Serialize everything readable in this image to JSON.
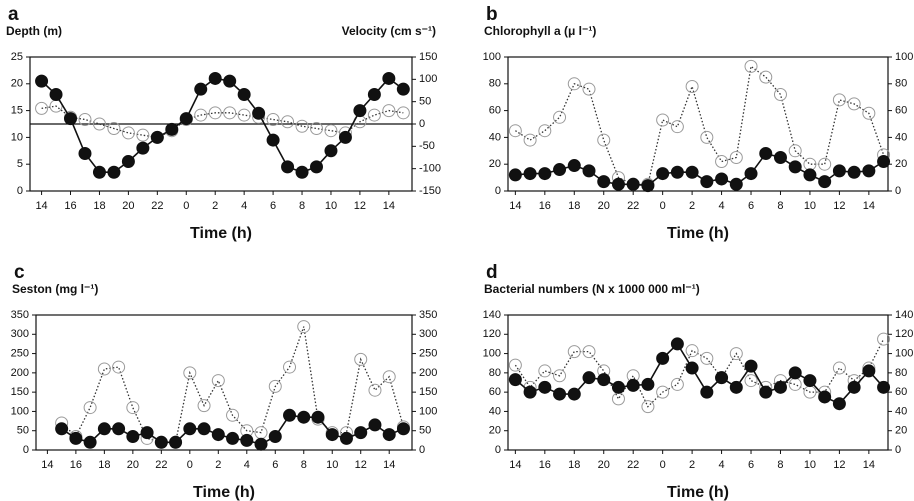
{
  "chart_data": [
    {
      "type": "line",
      "label": "a",
      "ylabel": "Depth (m)",
      "y2label": "Velocity (cm s⁻¹)",
      "xlabel": "Time (h)",
      "x": [
        14,
        15,
        16,
        17,
        18,
        19,
        20,
        21,
        22,
        23,
        24,
        25,
        26,
        27,
        28,
        29,
        30,
        31,
        32,
        33,
        34,
        35,
        36,
        37,
        38,
        39
      ],
      "xlim": [
        13.2,
        39.6
      ],
      "xticks": [
        14,
        16,
        18,
        20,
        22,
        {
          "value": 24,
          "label": "0"
        },
        {
          "value": 26,
          "label": "2"
        },
        {
          "value": 28,
          "label": "4"
        },
        {
          "value": 30,
          "label": "6"
        },
        {
          "value": 32,
          "label": "8"
        },
        {
          "value": 34,
          "label": "10"
        },
        {
          "value": 36,
          "label": "12"
        },
        {
          "value": 38,
          "label": "14"
        }
      ],
      "ylim": [
        0,
        25
      ],
      "yticks": [
        0,
        5,
        10,
        15,
        20,
        25
      ],
      "y2lim": [
        -150,
        150
      ],
      "y2ticks": [
        -150,
        -100,
        -50,
        0,
        50,
        100,
        150
      ],
      "reference_y2": 0,
      "series": [
        {
          "color": "#111111",
          "marker": "filled",
          "values": [
            20.5,
            18,
            13.5,
            7,
            3.5,
            3.5,
            5.5,
            8,
            10,
            11.5,
            13.5,
            19,
            21,
            20.5,
            18,
            14.5,
            9.5,
            4.5,
            3.5,
            4.5,
            7.5,
            10,
            15,
            18,
            21,
            19
          ]
        },
        {
          "color": "#9a9a9a",
          "marker": "open",
          "axis": "y2",
          "values": [
            35,
            40,
            15,
            10,
            0,
            -10,
            -20,
            -25,
            -30,
            -15,
            10,
            20,
            25,
            25,
            20,
            15,
            10,
            5,
            -5,
            -10,
            -15,
            -20,
            5,
            20,
            30,
            25
          ]
        }
      ]
    },
    {
      "type": "line",
      "label": "b",
      "ylabel": "Chlorophyll a (μ l⁻¹)",
      "xlabel": "Time (h)",
      "x": [
        14,
        15,
        16,
        17,
        18,
        19,
        20,
        21,
        22,
        23,
        24,
        25,
        26,
        27,
        28,
        29,
        30,
        31,
        32,
        33,
        34,
        35,
        36,
        37,
        38,
        39
      ],
      "xlim": [
        13.5,
        39.3
      ],
      "xticks": [
        14,
        16,
        18,
        20,
        22,
        {
          "value": 24,
          "label": "0"
        },
        {
          "value": 26,
          "label": "2"
        },
        {
          "value": 28,
          "label": "4"
        },
        {
          "value": 30,
          "label": "6"
        },
        {
          "value": 32,
          "label": "8"
        },
        {
          "value": 34,
          "label": "10"
        },
        {
          "value": 36,
          "label": "12"
        },
        {
          "value": 38,
          "label": "14"
        }
      ],
      "ylim": [
        0,
        100
      ],
      "yticks": [
        0,
        20,
        40,
        60,
        80,
        100
      ],
      "y2lim": [
        0,
        100
      ],
      "y2ticks": [
        0,
        20,
        40,
        60,
        80,
        100
      ],
      "series": [
        {
          "color": "#111111",
          "marker": "filled",
          "values": [
            12,
            13,
            13,
            16,
            19,
            15,
            7,
            5,
            5,
            4,
            13,
            14,
            14,
            7,
            9,
            5,
            13,
            28,
            25,
            18,
            12,
            7,
            15,
            14,
            15,
            22
          ]
        },
        {
          "color": "#9a9a9a",
          "marker": "open",
          "values": [
            45,
            38,
            45,
            55,
            80,
            76,
            38,
            10,
            5,
            5,
            53,
            48,
            78,
            40,
            22,
            25,
            93,
            85,
            72,
            30,
            20,
            20,
            68,
            65,
            58,
            27
          ]
        }
      ]
    },
    {
      "type": "line",
      "label": "c",
      "ylabel": "Seston (mg l⁻¹)",
      "xlabel": "Time (h)",
      "x": [
        15,
        16,
        17,
        18,
        19,
        20,
        21,
        22,
        23,
        24,
        25,
        26,
        27,
        28,
        29,
        30,
        31,
        32,
        33,
        34,
        35,
        36,
        37,
        38,
        39
      ],
      "xlim": [
        13.2,
        39.6
      ],
      "xticks": [
        14,
        16,
        18,
        20,
        22,
        {
          "value": 24,
          "label": "0"
        },
        {
          "value": 26,
          "label": "2"
        },
        {
          "value": 28,
          "label": "4"
        },
        {
          "value": 30,
          "label": "6"
        },
        {
          "value": 32,
          "label": "8"
        },
        {
          "value": 34,
          "label": "10"
        },
        {
          "value": 36,
          "label": "12"
        },
        {
          "value": 38,
          "label": "14"
        }
      ],
      "ylim": [
        0,
        350
      ],
      "yticks": [
        0,
        50,
        100,
        150,
        200,
        250,
        300,
        350
      ],
      "y2lim": [
        0,
        350
      ],
      "y2ticks": [
        0,
        50,
        100,
        150,
        200,
        250,
        300,
        350
      ],
      "series": [
        {
          "color": "#111111",
          "marker": "filled",
          "values": [
            55,
            30,
            20,
            55,
            55,
            35,
            45,
            20,
            20,
            55,
            55,
            40,
            30,
            25,
            15,
            35,
            90,
            85,
            85,
            40,
            30,
            45,
            65,
            40,
            55
          ]
        },
        {
          "color": "#9a9a9a",
          "marker": "open",
          "values": [
            70,
            35,
            110,
            210,
            215,
            110,
            30,
            20,
            20,
            200,
            115,
            180,
            90,
            50,
            45,
            165,
            215,
            320,
            80,
            45,
            45,
            235,
            155,
            190,
            60
          ]
        }
      ]
    },
    {
      "type": "line",
      "label": "d",
      "ylabel": "Bacterial numbers (N x 1000 000 ml⁻¹)",
      "xlabel": "Time (h)",
      "x": [
        14,
        15,
        16,
        17,
        18,
        19,
        20,
        21,
        22,
        23,
        24,
        25,
        26,
        27,
        28,
        29,
        30,
        31,
        32,
        33,
        34,
        35,
        36,
        37,
        38,
        39
      ],
      "xlim": [
        13.5,
        39.3
      ],
      "xticks": [
        14,
        16,
        18,
        20,
        22,
        {
          "value": 24,
          "label": "0"
        },
        {
          "value": 26,
          "label": "2"
        },
        {
          "value": 28,
          "label": "4"
        },
        {
          "value": 30,
          "label": "6"
        },
        {
          "value": 32,
          "label": "8"
        },
        {
          "value": 34,
          "label": "10"
        },
        {
          "value": 36,
          "label": "12"
        },
        {
          "value": 38,
          "label": "14"
        }
      ],
      "ylim": [
        0,
        140
      ],
      "yticks": [
        0,
        20,
        40,
        60,
        80,
        100,
        120,
        140
      ],
      "y2lim": [
        0,
        140
      ],
      "y2ticks": [
        0,
        20,
        40,
        60,
        80,
        100,
        120,
        140
      ],
      "series": [
        {
          "color": "#111111",
          "marker": "filled",
          "values": [
            73,
            60,
            65,
            58,
            58,
            75,
            73,
            65,
            67,
            68,
            95,
            110,
            85,
            60,
            75,
            65,
            87,
            60,
            65,
            80,
            72,
            55,
            48,
            65,
            82,
            65
          ]
        },
        {
          "color": "#9a9a9a",
          "marker": "open",
          "values": [
            88,
            65,
            82,
            77,
            102,
            102,
            82,
            53,
            77,
            45,
            60,
            68,
            103,
            95,
            75,
            100,
            72,
            65,
            72,
            68,
            60,
            60,
            85,
            72,
            85,
            115
          ]
        }
      ]
    }
  ]
}
